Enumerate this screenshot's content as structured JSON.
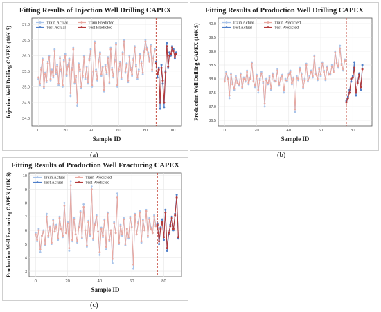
{
  "panels": [
    {
      "title": "Fitting Results of Injection Well Drilling CAPEX",
      "caption": "(a)",
      "xlabel": "Sample ID",
      "ylabel": "Injection Well Drilling CAPEX (10K $)",
      "legend": [
        "Train Actual",
        "Train Predicted",
        "Test Actual",
        "Test Predicted"
      ],
      "xticks": [
        "0",
        "20",
        "40",
        "60",
        "80",
        "100"
      ],
      "yticks": [
        "34.0",
        "34.5",
        "35.0",
        "35.5",
        "36.0",
        "36.5",
        "37.0"
      ]
    },
    {
      "title": "Fitting Results of Production Well Drilling CAPEX",
      "caption": "(b)",
      "xlabel": "Sample ID",
      "ylabel": "Production Well Drilling CAPEX (10K $)",
      "legend": [
        "Train Actual",
        "Train Predicted",
        "Test Actual",
        "Test Predicted"
      ],
      "xticks": [
        "0",
        "20",
        "40",
        "60",
        "80"
      ],
      "yticks": [
        "36.5",
        "37.0",
        "37.5",
        "38.0",
        "38.5",
        "39.0",
        "39.5",
        "40.0"
      ]
    },
    {
      "title": "Fitting Results of Production Well Fracturing CAPEX",
      "caption": "(c)",
      "xlabel": "Sample ID",
      "ylabel": "Production Well Fracturing CAPEX (10K $)",
      "legend": [
        "Train Actual",
        "Train Predicted",
        "Test Actual",
        "Test Predicted"
      ],
      "xticks": [
        "0",
        "20",
        "40",
        "60",
        "80"
      ],
      "yticks": [
        "3",
        "4",
        "5",
        "6",
        "7",
        "8",
        "9",
        "10"
      ]
    }
  ],
  "colors": {
    "train_actual": "#a9c4ea",
    "train_predicted": "#e9a8a0",
    "test_actual": "#4f7fc9",
    "test_predicted": "#b43a3a",
    "split_line": "#c0392b"
  },
  "chart_data": [
    {
      "type": "line",
      "title": "Fitting Results of Injection Well Drilling CAPEX",
      "xlabel": "Sample ID",
      "ylabel": "Injection Well Drilling CAPEX (10K $)",
      "xlim": [
        -5,
        107
      ],
      "ylim": [
        33.75,
        37.2
      ],
      "grid": true,
      "legend_position": "top-left",
      "split_x": 88,
      "series": [
        {
          "name": "Train Actual",
          "x_start": 0,
          "values": [
            35.25,
            35.05,
            35.6,
            35.9,
            34.95,
            35.45,
            35.15,
            35.8,
            36.0,
            35.2,
            35.55,
            35.3,
            36.2,
            35.4,
            35.7,
            35.05,
            35.95,
            35.5,
            35.0,
            35.85,
            36.05,
            35.35,
            35.7,
            35.9,
            34.7,
            35.6,
            36.25,
            35.1,
            35.3,
            34.4,
            35.75,
            35.5,
            34.95,
            35.3,
            36.0,
            35.25,
            35.65,
            35.1,
            35.9,
            36.2,
            35.0,
            35.45,
            36.45,
            35.55,
            35.2,
            35.85,
            36.1,
            35.35,
            35.65,
            34.85,
            35.7,
            35.4,
            35.95,
            35.1,
            36.25,
            35.6,
            35.3,
            35.85,
            36.4,
            35.0,
            35.5,
            35.8,
            35.25,
            36.1,
            36.5,
            35.45,
            35.75,
            35.15,
            36.0,
            35.6,
            35.35,
            35.9,
            36.3,
            35.7,
            35.25,
            35.55,
            36.05,
            35.8,
            35.4,
            36.15,
            36.5,
            36.25,
            36.1,
            35.85,
            36.35,
            35.5,
            35.95,
            36.2
          ]
        },
        {
          "name": "Train Predicted",
          "x_start": 0,
          "values": [
            35.3,
            35.1,
            35.55,
            35.85,
            35.0,
            35.4,
            35.2,
            35.75,
            35.95,
            35.25,
            35.5,
            35.35,
            36.15,
            35.45,
            35.65,
            35.1,
            35.9,
            35.55,
            35.05,
            35.8,
            36.0,
            35.4,
            35.65,
            35.85,
            34.8,
            35.55,
            36.2,
            35.15,
            35.35,
            34.5,
            35.7,
            35.55,
            35.0,
            35.35,
            35.95,
            35.3,
            35.6,
            35.15,
            35.85,
            36.15,
            35.05,
            35.5,
            36.4,
            35.5,
            35.25,
            35.8,
            36.05,
            35.4,
            35.6,
            34.9,
            35.65,
            35.45,
            35.9,
            35.15,
            36.2,
            35.55,
            35.35,
            35.8,
            36.35,
            35.05,
            35.55,
            35.75,
            35.3,
            36.05,
            36.45,
            35.5,
            35.7,
            35.2,
            35.95,
            35.55,
            35.4,
            35.85,
            36.25,
            35.65,
            35.3,
            35.5,
            36.0,
            35.75,
            35.45,
            36.1,
            36.45,
            36.2,
            36.05,
            35.8,
            36.3,
            35.55,
            35.9,
            36.15
          ]
        },
        {
          "name": "Test Actual",
          "x_start": 88,
          "values": [
            35.8,
            35.3,
            35.6,
            34.3,
            35.7,
            35.1,
            34.35,
            35.5,
            36.4,
            35.6,
            36.1,
            36.0,
            36.3,
            36.2,
            35.9,
            36.1
          ]
        },
        {
          "name": "Test Predicted",
          "x_start": 88,
          "values": [
            35.75,
            35.4,
            35.55,
            34.5,
            35.6,
            35.2,
            34.5,
            35.45,
            36.3,
            35.65,
            36.0,
            36.05,
            36.25,
            36.15,
            35.95,
            36.05
          ]
        }
      ]
    },
    {
      "type": "line",
      "title": "Fitting Results of Production Well Drilling CAPEX",
      "xlabel": "Sample ID",
      "ylabel": "Production Well Drilling CAPEX (10K $)",
      "xlim": [
        -4,
        92
      ],
      "ylim": [
        36.3,
        40.2
      ],
      "grid": true,
      "legend_position": "top-left",
      "split_x": 76,
      "series": [
        {
          "name": "Train Actual",
          "x_start": 0,
          "values": [
            37.95,
            38.25,
            38.05,
            37.3,
            38.2,
            37.85,
            37.6,
            38.1,
            37.9,
            37.75,
            38.2,
            37.65,
            38.05,
            37.9,
            38.3,
            37.8,
            38.05,
            38.6,
            37.95,
            37.7,
            38.15,
            37.5,
            38.0,
            38.25,
            37.85,
            37.0,
            38.0,
            37.8,
            38.1,
            37.6,
            38.2,
            37.9,
            37.95,
            38.35,
            37.75,
            38.05,
            38.15,
            37.5,
            38.0,
            37.9,
            38.2,
            38.3,
            37.8,
            38.05,
            36.8,
            38.1,
            37.95,
            38.4,
            38.2,
            37.65,
            38.0,
            38.55,
            37.9,
            38.1,
            38.3,
            38.05,
            38.85,
            38.2,
            37.95,
            38.4,
            38.1,
            38.6,
            38.3,
            37.95,
            38.45,
            38.2,
            38.15,
            38.5,
            38.3,
            39.0,
            38.6,
            38.4,
            39.2,
            38.55,
            38.3,
            38.7
          ]
        },
        {
          "name": "Train Predicted",
          "x_start": 0,
          "values": [
            37.9,
            38.2,
            38.0,
            37.4,
            38.15,
            37.8,
            37.65,
            38.05,
            37.85,
            37.8,
            38.15,
            37.7,
            38.0,
            37.95,
            38.25,
            37.85,
            38.0,
            38.55,
            37.9,
            37.75,
            38.1,
            37.6,
            37.95,
            38.2,
            37.9,
            37.1,
            37.95,
            37.85,
            38.05,
            37.65,
            38.15,
            37.95,
            37.9,
            38.3,
            37.8,
            38.0,
            38.1,
            37.6,
            37.95,
            37.95,
            38.15,
            38.25,
            37.85,
            38.0,
            36.9,
            38.05,
            38.0,
            38.35,
            38.15,
            37.7,
            37.95,
            38.5,
            37.95,
            38.05,
            38.25,
            38.1,
            38.8,
            38.15,
            38.0,
            38.35,
            38.15,
            38.55,
            38.25,
            38.0,
            38.4,
            38.15,
            38.2,
            38.45,
            38.25,
            38.95,
            38.55,
            38.45,
            39.1,
            38.5,
            38.35,
            38.65
          ]
        },
        {
          "name": "Test Actual",
          "x_start": 76,
          "values": [
            37.2,
            37.35,
            37.6,
            37.9,
            38.1,
            38.6,
            37.4,
            37.9,
            38.2,
            37.6,
            38.5
          ]
        },
        {
          "name": "Test Predicted",
          "x_start": 76,
          "values": [
            37.15,
            37.3,
            37.5,
            38.0,
            38.05,
            38.4,
            37.5,
            37.85,
            38.15,
            37.7,
            38.35
          ]
        }
      ]
    },
    {
      "type": "line",
      "title": "Fitting Results of Production Well Fracturing CAPEX",
      "xlabel": "Sample ID",
      "ylabel": "Production Well Fracturing CAPEX (10K $)",
      "xlim": [
        -4,
        91
      ],
      "ylim": [
        2.6,
        10.2
      ],
      "grid": true,
      "legend_position": "top-left",
      "split_x": 76,
      "series": [
        {
          "name": "Train Actual",
          "x_start": 0,
          "values": [
            5.8,
            5.2,
            6.1,
            4.4,
            5.6,
            6.0,
            4.9,
            7.2,
            5.5,
            6.3,
            5.0,
            6.8,
            5.9,
            6.4,
            5.3,
            7.0,
            6.1,
            5.5,
            8.0,
            5.8,
            6.6,
            4.5,
            9.6,
            5.2,
            6.9,
            5.7,
            5.1,
            6.3,
            7.4,
            5.4,
            7.9,
            6.0,
            4.8,
            6.7,
            5.6,
            9.2,
            5.3,
            6.5,
            7.1,
            5.9,
            4.2,
            6.2,
            5.5,
            6.8,
            4.6,
            7.3,
            5.2,
            6.0,
            3.6,
            6.6,
            5.8,
            8.7,
            5.0,
            6.4,
            5.6,
            6.9,
            4.9,
            6.1,
            5.4,
            7.0,
            6.3,
            3.2,
            7.2,
            5.7,
            6.6,
            7.4,
            5.1,
            6.8,
            6.0,
            7.5,
            5.5,
            6.9,
            6.2,
            5.8,
            7.1,
            6.4
          ]
        },
        {
          "name": "Train Predicted",
          "x_start": 0,
          "values": [
            5.7,
            5.3,
            6.0,
            4.6,
            5.6,
            5.9,
            5.0,
            7.0,
            5.6,
            6.2,
            5.1,
            6.7,
            5.9,
            6.3,
            5.4,
            6.9,
            6.1,
            5.6,
            7.8,
            5.8,
            6.5,
            4.7,
            9.3,
            5.3,
            6.8,
            5.7,
            5.2,
            6.2,
            7.3,
            5.5,
            7.7,
            6.0,
            4.9,
            6.6,
            5.7,
            9.0,
            5.4,
            6.4,
            7.0,
            5.9,
            4.4,
            6.1,
            5.6,
            6.7,
            4.8,
            7.2,
            5.3,
            6.0,
            3.9,
            6.5,
            5.8,
            8.4,
            5.1,
            6.3,
            5.7,
            6.8,
            5.0,
            6.1,
            5.5,
            6.9,
            6.2,
            3.5,
            7.1,
            5.7,
            6.5,
            7.3,
            5.2,
            6.7,
            6.0,
            7.4,
            5.6,
            6.8,
            6.1,
            5.8,
            7.0,
            6.3
          ]
        },
        {
          "name": "Test Actual",
          "x_start": 76,
          "values": [
            6.5,
            5.0,
            6.2,
            6.8,
            5.3,
            7.5,
            4.5,
            5.7,
            6.4,
            7.0,
            6.0,
            7.2,
            8.6,
            5.4
          ]
        },
        {
          "name": "Test Predicted",
          "x_start": 76,
          "values": [
            6.4,
            5.2,
            6.1,
            6.6,
            5.5,
            7.3,
            4.7,
            5.8,
            6.3,
            6.9,
            6.1,
            7.1,
            8.4,
            5.5
          ]
        }
      ]
    }
  ]
}
